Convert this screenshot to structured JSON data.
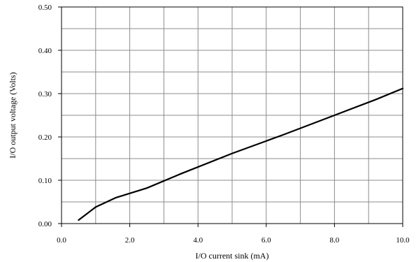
{
  "chart_data": {
    "type": "line",
    "title": "",
    "xlabel": "I/O current sink (mA)",
    "ylabel": "I/O output voltage (Volts)",
    "xlim": [
      0,
      10
    ],
    "ylim": [
      0,
      0.5
    ],
    "x_ticks": [
      0,
      2,
      4,
      6,
      8,
      10
    ],
    "x_tick_labels": [
      "0.0",
      "2.0",
      "4.0",
      "6.0",
      "8.0",
      "10.0"
    ],
    "y_ticks": [
      0,
      0.1,
      0.2,
      0.3,
      0.4,
      0.5
    ],
    "y_tick_labels": [
      "0.00",
      "0.10",
      "0.20",
      "0.30",
      "0.40",
      "0.50"
    ],
    "grid": true,
    "grid_x_step": 1,
    "grid_y_step": 0.05,
    "series": [
      {
        "x": [
          0.5,
          1.0,
          1.6,
          2.5,
          3.5,
          5.0,
          6.5,
          8.0,
          9.2,
          10.0
        ],
        "y": [
          0.008,
          0.038,
          0.06,
          0.082,
          0.115,
          0.162,
          0.205,
          0.25,
          0.286,
          0.312
        ],
        "color": "#000000"
      }
    ]
  }
}
